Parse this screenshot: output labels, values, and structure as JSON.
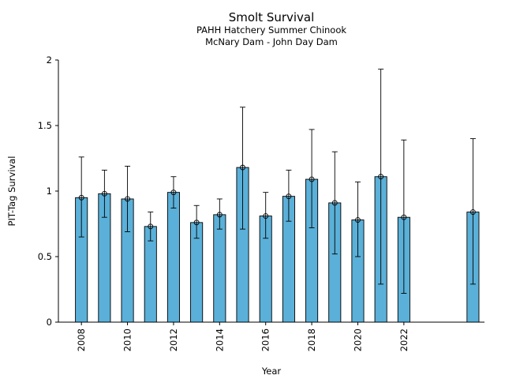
{
  "chart_data": {
    "type": "bar",
    "title": "Smolt Survival",
    "subtitle_lines": [
      "PAHH Hatchery Summer Chinook",
      "McNary Dam - John Day Dam"
    ],
    "xlabel": "Year",
    "ylabel": "PIT-Tag Survival",
    "ylim": [
      0,
      2
    ],
    "yticks": [
      0,
      0.5,
      1,
      1.5,
      2
    ],
    "ytick_labels": [
      "0",
      "0.5",
      "1",
      "1.5",
      "2"
    ],
    "xlim": [
      2007.0,
      2025.5
    ],
    "xticks": [
      2008,
      2010,
      2012,
      2014,
      2016,
      2018,
      2020,
      2022
    ],
    "xtick_labels": [
      "2008",
      "2010",
      "2012",
      "2014",
      "2016",
      "2018",
      "2020",
      "2022"
    ],
    "bar_color": "#5ab0d8",
    "bars": [
      {
        "x": 2008,
        "value": 0.95,
        "lower": 0.65,
        "upper": 1.26
      },
      {
        "x": 2009,
        "value": 0.98,
        "lower": 0.8,
        "upper": 1.16
      },
      {
        "x": 2010,
        "value": 0.94,
        "lower": 0.69,
        "upper": 1.19
      },
      {
        "x": 2011,
        "value": 0.73,
        "lower": 0.62,
        "upper": 0.84
      },
      {
        "x": 2012,
        "value": 0.99,
        "lower": 0.87,
        "upper": 1.11
      },
      {
        "x": 2013,
        "value": 0.76,
        "lower": 0.64,
        "upper": 0.89
      },
      {
        "x": 2014,
        "value": 0.82,
        "lower": 0.71,
        "upper": 0.94
      },
      {
        "x": 2015,
        "value": 1.18,
        "lower": 0.71,
        "upper": 1.64
      },
      {
        "x": 2016,
        "value": 0.81,
        "lower": 0.64,
        "upper": 0.99
      },
      {
        "x": 2017,
        "value": 0.96,
        "lower": 0.77,
        "upper": 1.16
      },
      {
        "x": 2018,
        "value": 1.09,
        "lower": 0.72,
        "upper": 1.47
      },
      {
        "x": 2019,
        "value": 0.91,
        "lower": 0.52,
        "upper": 1.3
      },
      {
        "x": 2020,
        "value": 0.78,
        "lower": 0.5,
        "upper": 1.07
      },
      {
        "x": 2021,
        "value": 1.11,
        "lower": 0.29,
        "upper": 1.93
      },
      {
        "x": 2022,
        "value": 0.8,
        "lower": 0.22,
        "upper": 1.39
      },
      {
        "x": 2025,
        "value": 0.84,
        "lower": 0.29,
        "upper": 1.4
      }
    ]
  }
}
